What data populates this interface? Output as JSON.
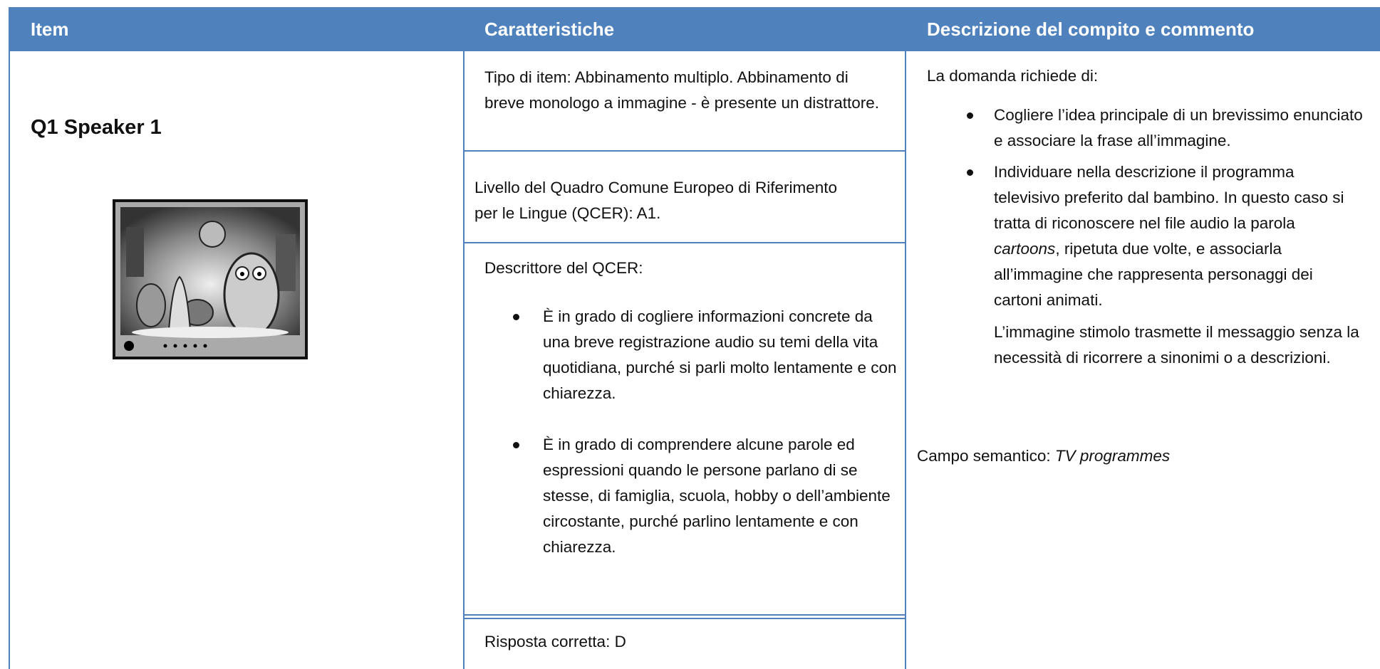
{
  "header": {
    "columns": [
      "Item",
      "Caratteristiche",
      "Descrizione del compito e commento"
    ]
  },
  "item": {
    "label": "Q1 Speaker 1"
  },
  "characteristics": {
    "item_type": "Tipo di item: Abbinamento multiplo. Abbinamento di breve monologo a immagine - è presente un distrattore.",
    "level": "Livello del Quadro Comune Europeo di Riferimento per le Lingue (QCER): A1.",
    "descriptor_title": "Descrittore del QCER:",
    "descriptors": [
      "È in grado di cogliere informazioni concrete da una breve registrazione audio su temi della vita quotidiana, purché si parli molto lentamente e con chiarezza.",
      "È in grado di comprendere alcune parole ed espressioni quando le persone parlano di se stesse, di famiglia, scuola, hobby o dell’ambiente circostante, purché parlino lentamente e con chiarezza."
    ],
    "answer": "Risposta corretta: D"
  },
  "description": {
    "intro": "La domanda richiede di:",
    "bullets": [
      [
        "Cogliere l’idea principale di un brevissimo enunciato e associare la frase all’immagine."
      ],
      [
        "Individuare nella descrizione il programma televisivo preferito dal bambino. In questo caso si tratta di riconoscere nel file audio la parola ",
        "cartoons",
        ", ripetuta due volte, e associarla all’immagine che rappresenta personaggi dei cartoni animati."
      ]
    ],
    "comment": "L’immagine stimolo trasmette il messaggio senza la necessità di ricorrere a sinonimi o a descrizioni.",
    "semantic_field": [
      "Campo semantico: ",
      "TV programmes"
    ]
  }
}
